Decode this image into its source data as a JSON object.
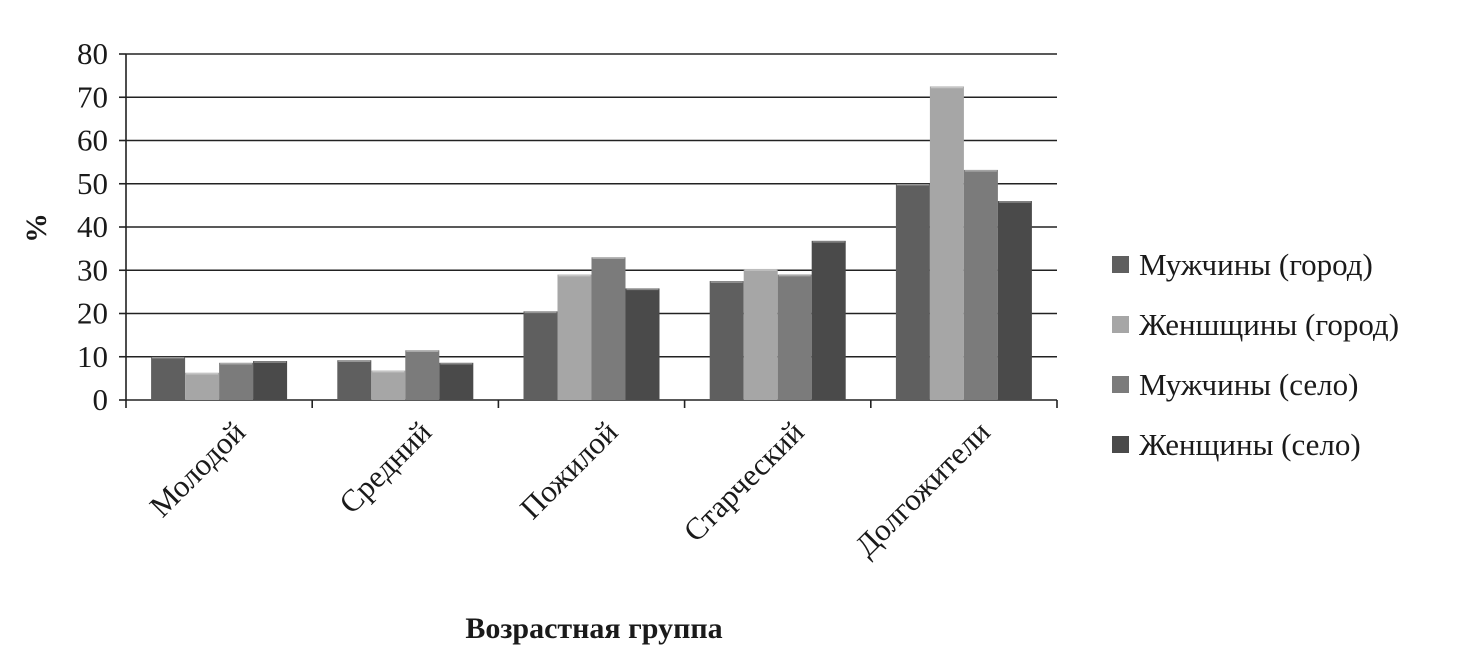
{
  "chart_data": {
    "type": "bar",
    "xlabel": "Возрастная группа",
    "ylabel": "%",
    "ylim": [
      0,
      80
    ],
    "yticks": [
      0,
      10,
      20,
      30,
      40,
      50,
      60,
      70,
      80
    ],
    "grid": true,
    "legend_position": "right",
    "categories": [
      "Молодой",
      "Средний",
      "Пожилой",
      "Старческий",
      "Долгожители"
    ],
    "series": [
      {
        "name": "Мужчины (город)",
        "color": "#5f5f5f",
        "values": [
          10.0,
          9.2,
          20.5,
          27.5,
          50.0
        ]
      },
      {
        "name": "Женшщины (город)",
        "color": "#a6a6a6",
        "values": [
          6.3,
          6.8,
          29.0,
          30.3,
          72.5
        ]
      },
      {
        "name": "Мужчины (село)",
        "color": "#7b7b7b",
        "values": [
          8.6,
          11.5,
          33.0,
          29.0,
          53.2
        ]
      },
      {
        "name": "Женщины (село)",
        "color": "#4a4a4a",
        "values": [
          9.0,
          8.6,
          25.8,
          36.8,
          46.0
        ]
      }
    ]
  }
}
